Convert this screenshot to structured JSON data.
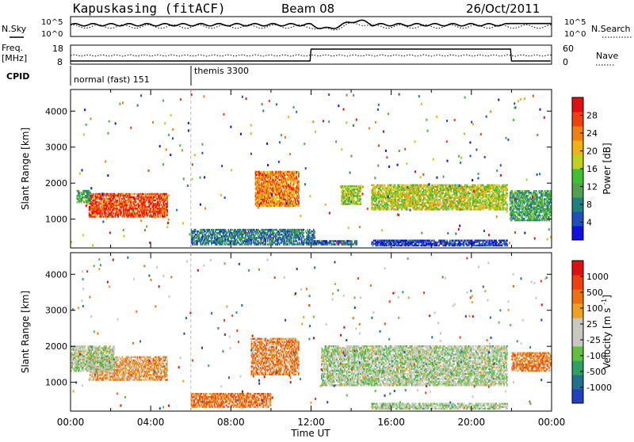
{
  "header": {
    "station": "Kapuskasing (fitACF)",
    "beam": "Beam 08",
    "date": "26/Oct/2011"
  },
  "top_panels": {
    "nsky_label": "N.Sky",
    "nsky_ticks": [
      "10^5",
      "10^0"
    ],
    "nsearch_label": "N.Search",
    "nsearch_ticks": [
      "10^5",
      "10^0"
    ],
    "freq_label": "Freq.",
    "freq_unit": "[MHz]",
    "freq_ticks": [
      "18",
      "8"
    ],
    "nave_label": "Nave",
    "nave_ticks": [
      "60",
      "0"
    ],
    "cpid_label": "CPID",
    "cpid_segments": [
      {
        "label": "normal (fast) 151",
        "start": 0,
        "end": 6
      },
      {
        "label": "themis 3300",
        "start": 6,
        "end": 24
      }
    ]
  },
  "chart_data": [
    {
      "type": "heatmap",
      "name": "power-panel",
      "ylabel": "Slant Range [km]",
      "xlim": [
        0,
        24
      ],
      "ylim": [
        200,
        4600
      ],
      "yticks": [
        "1000",
        "2000",
        "3000",
        "4000"
      ],
      "colorbar_label": "Power [dB]",
      "colorbar_ticks": [
        "4",
        "8",
        "12",
        "16",
        "20",
        "24",
        "28"
      ],
      "colorbar_colors": [
        "#1010e0",
        "#2050c0",
        "#208080",
        "#50a050",
        "#40c030",
        "#c0d020",
        "#f0b010",
        "#f08010",
        "#f04010",
        "#e01010"
      ],
      "patches": [
        {
          "t0": 0.9,
          "t1": 4.8,
          "r0": 1050,
          "r1": 1700,
          "level": 0.85
        },
        {
          "t0": 0.3,
          "t1": 1.0,
          "r0": 1450,
          "r1": 1800,
          "level": 0.35
        },
        {
          "t0": 9.2,
          "t1": 11.4,
          "r0": 1350,
          "r1": 2300,
          "level": 0.75
        },
        {
          "t0": 6.0,
          "t1": 12.2,
          "r0": 280,
          "r1": 700,
          "level": 0.25
        },
        {
          "t0": 12.0,
          "t1": 14.3,
          "r0": 280,
          "r1": 400,
          "level": 0.2
        },
        {
          "t0": 15.0,
          "t1": 21.8,
          "r0": 1250,
          "r1": 1950,
          "level": 0.55
        },
        {
          "t0": 15.0,
          "t1": 21.8,
          "r0": 250,
          "r1": 400,
          "level": 0.1
        },
        {
          "t0": 21.9,
          "t1": 24.0,
          "r0": 950,
          "r1": 1800,
          "level": 0.35
        },
        {
          "t0": 13.5,
          "t1": 14.5,
          "r0": 1400,
          "r1": 1900,
          "level": 0.5
        }
      ]
    },
    {
      "type": "heatmap",
      "name": "velocity-panel",
      "xlabel": "Time UT",
      "ylabel": "Slant Range [km]",
      "xlim": [
        0,
        24
      ],
      "ylim": [
        200,
        4600
      ],
      "xticks": [
        "00:00",
        "04:00",
        "08:00",
        "12:00",
        "16:00",
        "20:00",
        "00:00"
      ],
      "yticks": [
        "1000",
        "2000",
        "3000",
        "4000"
      ],
      "colorbar_label": "Velocity [m s^-1]",
      "colorbar_ticks": [
        "1000",
        "500",
        "100",
        "25",
        "-25",
        "-100",
        "-500",
        "-1000"
      ],
      "colorbar_colors": [
        "#2040c0",
        "#207090",
        "#30a060",
        "#60c040",
        "#c8c8c0",
        "#c8c8c0",
        "#f0a020",
        "#f07010",
        "#f04010",
        "#e01010"
      ],
      "patches": [
        {
          "t0": 0.9,
          "t1": 4.8,
          "r0": 1050,
          "r1": 1700,
          "level": 0.65
        },
        {
          "t0": 9.0,
          "t1": 11.4,
          "r0": 1200,
          "r1": 2200,
          "level": 0.7
        },
        {
          "t0": 6.0,
          "t1": 10.0,
          "r0": 300,
          "r1": 700,
          "level": 0.72
        },
        {
          "t0": 12.5,
          "t1": 21.8,
          "r0": 900,
          "r1": 2000,
          "level": 0.45
        },
        {
          "t0": 15.0,
          "t1": 21.8,
          "r0": 250,
          "r1": 400,
          "level": 0.45
        },
        {
          "t0": 22.0,
          "t1": 24.0,
          "r0": 1300,
          "r1": 1800,
          "level": 0.7
        },
        {
          "t0": 0.0,
          "t1": 2.2,
          "r0": 1300,
          "r1": 2000,
          "level": 0.45
        }
      ]
    }
  ]
}
